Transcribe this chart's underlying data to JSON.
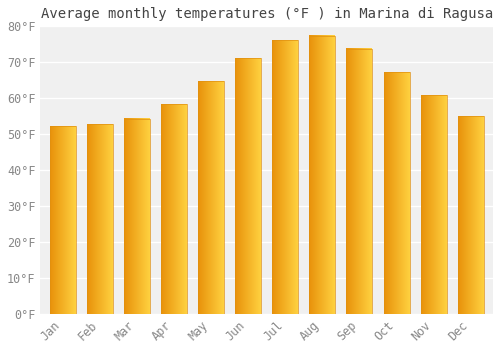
{
  "title": "Average monthly temperatures (°F ) in Marina di Ragusa",
  "months": [
    "Jan",
    "Feb",
    "Mar",
    "Apr",
    "May",
    "Jun",
    "Jul",
    "Aug",
    "Sep",
    "Oct",
    "Nov",
    "Dec"
  ],
  "values": [
    52.2,
    52.7,
    54.3,
    58.3,
    64.8,
    71.1,
    76.1,
    77.4,
    73.8,
    67.3,
    60.8,
    55.0
  ],
  "bar_color_left": "#E8920A",
  "bar_color_right": "#FFD040",
  "bar_color_top": "#FFD040",
  "background_color": "#FFFFFF",
  "plot_bg_color": "#F0F0F0",
  "grid_color": "#FFFFFF",
  "text_color": "#888888",
  "title_color": "#444444",
  "ylim": [
    0,
    80
  ],
  "ytick_step": 10,
  "title_fontsize": 10,
  "tick_fontsize": 8.5,
  "font_family": "monospace"
}
